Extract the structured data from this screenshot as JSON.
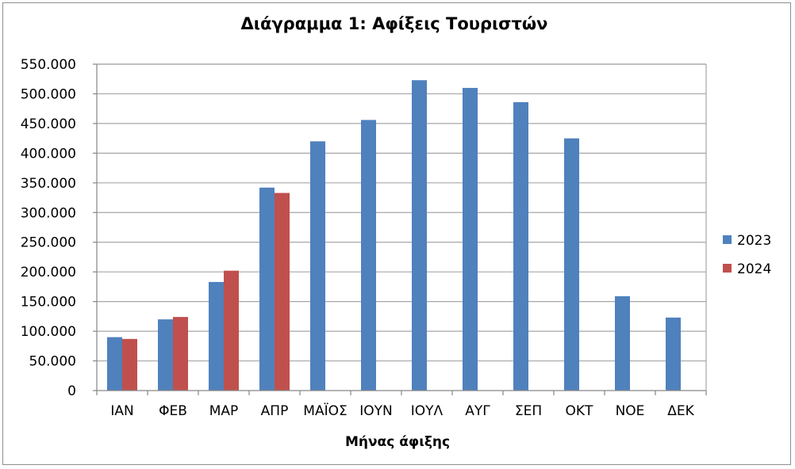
{
  "chart_data": {
    "type": "bar",
    "title": "Διάγραμμα 1: Αφίξεις Τουριστών",
    "xlabel": "Μήνας άφιξης",
    "ylabel": "",
    "categories": [
      "ΙΑΝ",
      "ΦΕΒ",
      "ΜΑΡ",
      "ΑΠΡ",
      "ΜΑΪΟΣ",
      "ΙΟΥΝ",
      "ΙΟΥΛ",
      "ΑΥΓ",
      "ΣΕΠ",
      "ΟΚΤ",
      "ΝΟΕ",
      "ΔΕΚ"
    ],
    "series": [
      {
        "name": "2023",
        "color": "#4f81bd",
        "values": [
          90000,
          120000,
          183000,
          342000,
          420000,
          456000,
          523000,
          510000,
          486000,
          425000,
          159000,
          123000
        ]
      },
      {
        "name": "2024",
        "color": "#c0504d",
        "values": [
          87000,
          124000,
          202000,
          333000,
          null,
          null,
          null,
          null,
          null,
          null,
          null,
          null
        ]
      }
    ],
    "ylim": [
      0,
      550000
    ],
    "yticks": [
      "0",
      "50.000",
      "100.000",
      "150.000",
      "200.000",
      "250.000",
      "300.000",
      "350.000",
      "400.000",
      "450.000",
      "500.000",
      "550.000"
    ],
    "ytick_step": 50000,
    "grid": true,
    "legend_position": "right"
  }
}
